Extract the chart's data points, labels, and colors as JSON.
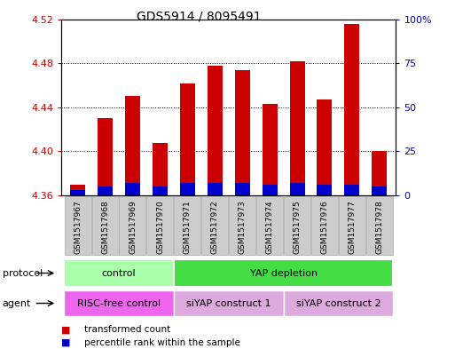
{
  "title": "GDS5914 / 8095491",
  "samples": [
    "GSM1517967",
    "GSM1517968",
    "GSM1517969",
    "GSM1517970",
    "GSM1517971",
    "GSM1517972",
    "GSM1517973",
    "GSM1517974",
    "GSM1517975",
    "GSM1517976",
    "GSM1517977",
    "GSM1517978"
  ],
  "transformed_count": [
    4.37,
    4.43,
    4.45,
    4.408,
    4.462,
    4.478,
    4.474,
    4.443,
    4.482,
    4.447,
    4.516,
    4.4
  ],
  "percentile_rank": [
    3,
    5,
    7,
    5,
    7,
    7,
    7,
    6,
    7,
    6,
    6,
    5
  ],
  "baseline": 4.36,
  "ylim_left": [
    4.36,
    4.52
  ],
  "ylim_right": [
    0,
    100
  ],
  "yticks_left": [
    4.36,
    4.4,
    4.44,
    4.48,
    4.52
  ],
  "yticks_right": [
    0,
    25,
    50,
    75,
    100
  ],
  "ytick_labels_right": [
    "0",
    "25",
    "50",
    "75",
    "100%"
  ],
  "bar_color_red": "#cc0000",
  "bar_color_blue": "#0000cc",
  "protocol_labels": [
    {
      "text": "control",
      "start": 0,
      "end": 3,
      "color": "#aaffaa"
    },
    {
      "text": "YAP depletion",
      "start": 4,
      "end": 11,
      "color": "#44dd44"
    }
  ],
  "agent_labels": [
    {
      "text": "RISC-free control",
      "start": 0,
      "end": 3,
      "color": "#ee66ee"
    },
    {
      "text": "siYAP construct 1",
      "start": 4,
      "end": 7,
      "color": "#ddaadd"
    },
    {
      "text": "siYAP construct 2",
      "start": 8,
      "end": 11,
      "color": "#ddaadd"
    }
  ],
  "legend_red": "transformed count",
  "legend_blue": "percentile rank within the sample",
  "protocol_row_label": "protocol",
  "agent_row_label": "agent",
  "left_tick_color": "#cc0000",
  "right_tick_color": "#0000cc",
  "xtick_bg_color": "#cccccc",
  "xtick_border_color": "#aaaaaa"
}
